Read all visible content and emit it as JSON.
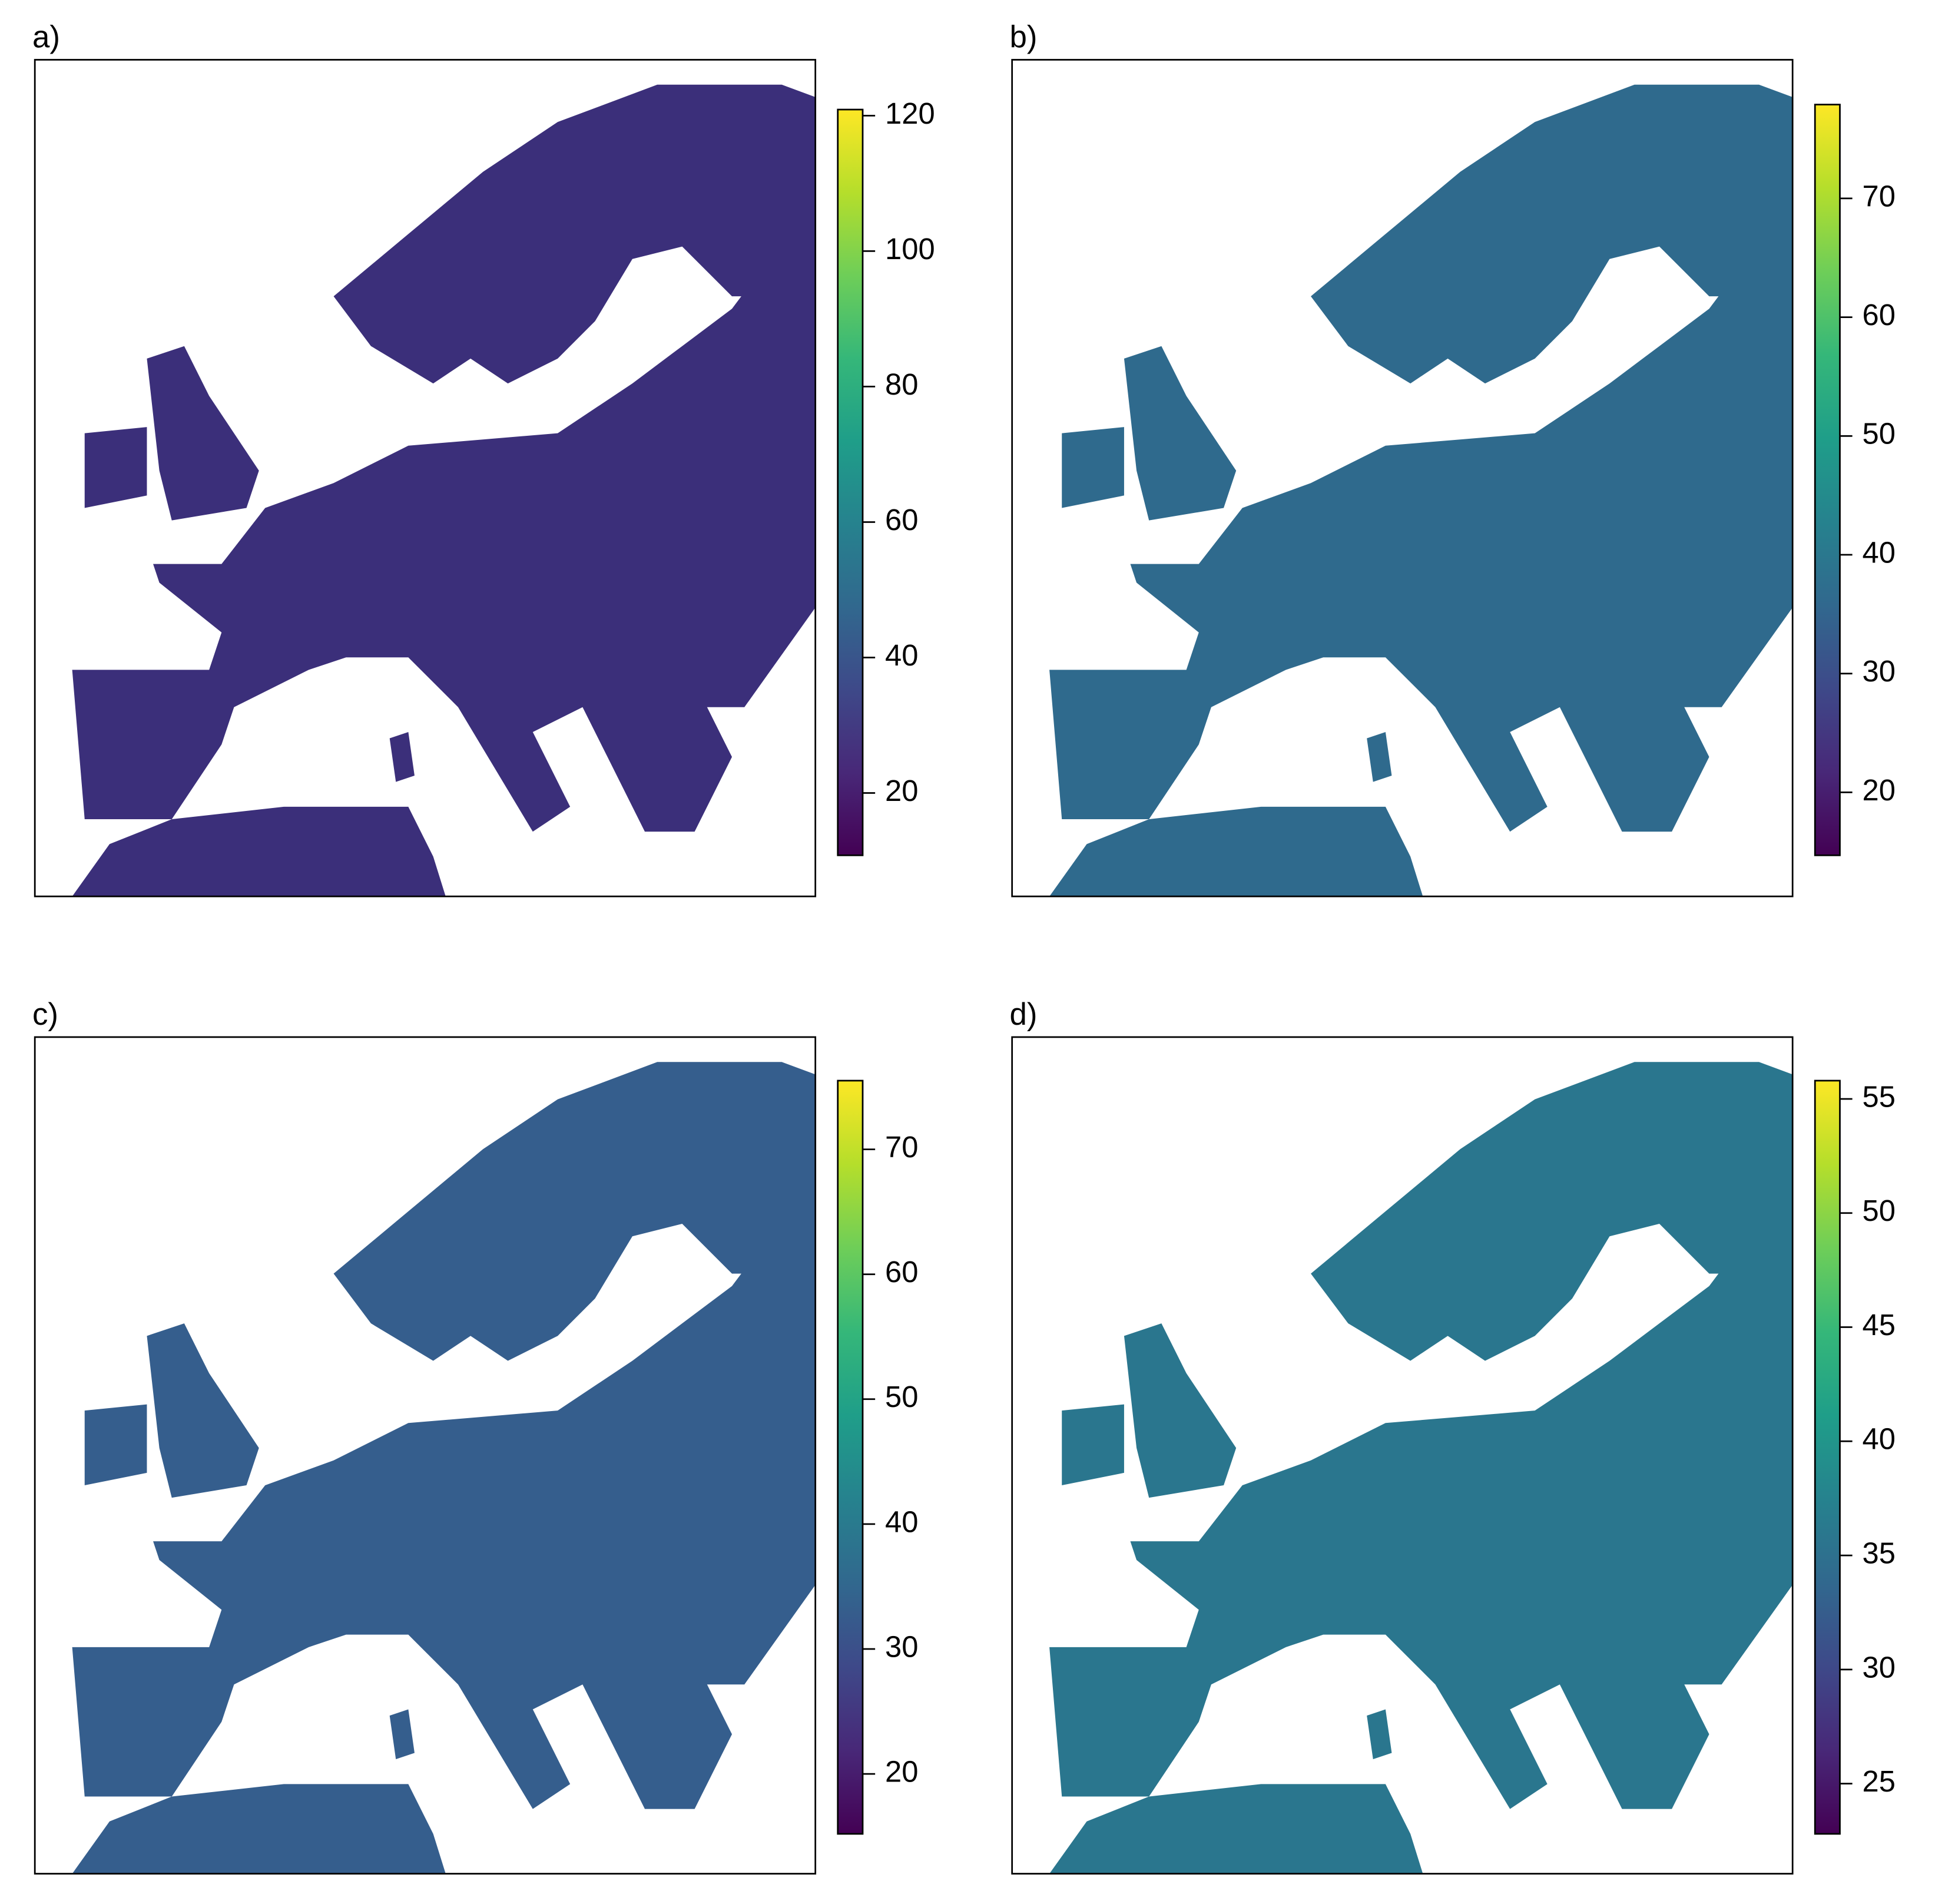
{
  "chart_data": [
    {
      "type": "raster-map",
      "title": "a)",
      "colormap": "viridis",
      "clim": [
        10.8,
        120.9
      ],
      "ticks": [
        20,
        40,
        60,
        80,
        100,
        120
      ]
    },
    {
      "type": "raster-map",
      "title": "b)",
      "colormap": "viridis",
      "clim": [
        14.7,
        77.9
      ],
      "ticks": [
        20,
        30,
        40,
        50,
        60,
        70
      ]
    },
    {
      "type": "raster-map",
      "title": "c)",
      "colormap": "viridis",
      "clim": [
        15.2,
        75.5
      ],
      "ticks": [
        20,
        30,
        40,
        50,
        60,
        70
      ]
    },
    {
      "type": "raster-map",
      "title": "d)",
      "colormap": "viridis",
      "clim": [
        22.8,
        55.8
      ],
      "ticks": [
        25,
        30,
        35,
        40,
        45,
        50,
        55
      ]
    }
  ]
}
